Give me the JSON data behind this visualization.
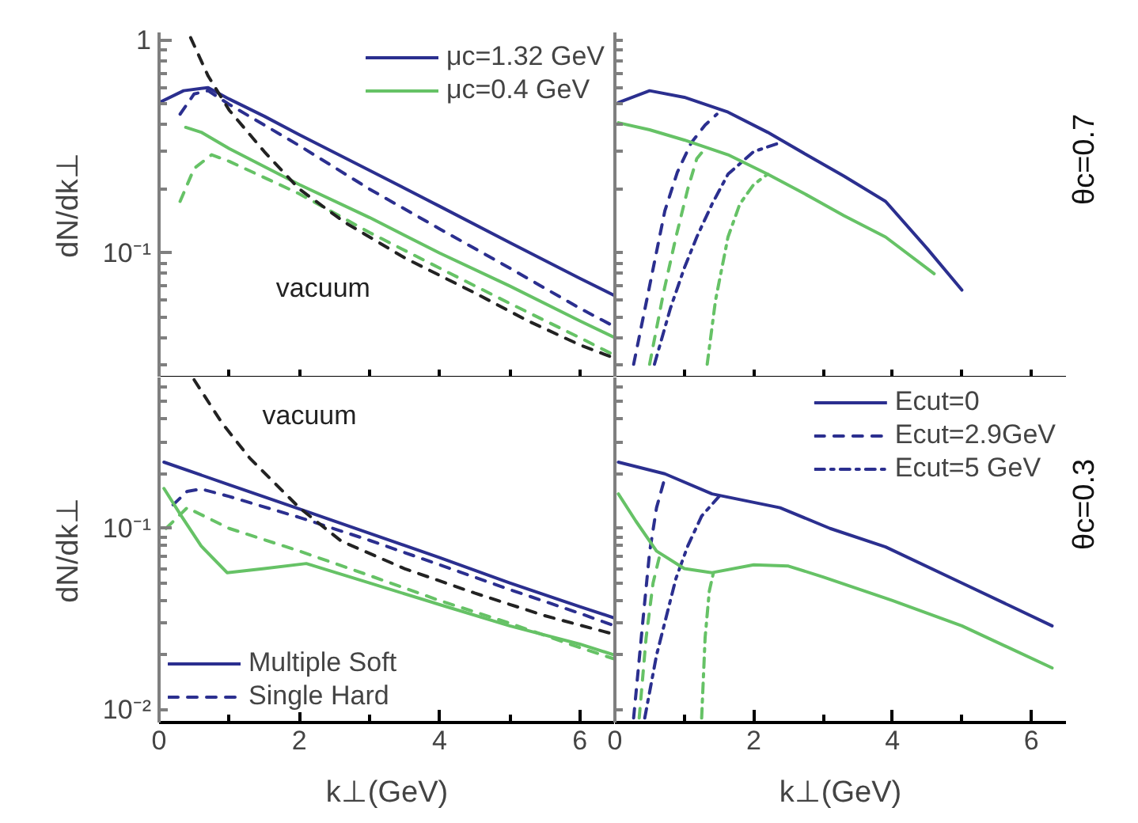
{
  "chart_data": [
    {
      "type": "line",
      "ylabel": "dN/dk⊥",
      "xlim": [
        0,
        6.5
      ],
      "ylim": [
        0.026,
        1.09
      ],
      "log": true,
      "tick_labels": "y",
      "legend": "top right",
      "xticks": [
        {
          "value": 0,
          "label": null
        },
        {
          "value": 1,
          "label": null
        },
        {
          "value": 2,
          "label": null
        },
        {
          "value": 3,
          "label": null
        },
        {
          "value": 4,
          "label": null
        },
        {
          "value": 5,
          "label": null
        },
        {
          "value": 6,
          "label": null
        }
      ],
      "yticks": [
        1,
        {
          "value": 0.1,
          "label": "10⁻¹"
        },
        {
          "value": 0.03,
          "label": null
        },
        {
          "value": 0.04,
          "label": null
        },
        {
          "value": 0.05,
          "label": null
        },
        {
          "value": 0.06,
          "label": null
        },
        {
          "value": 0.07,
          "label": null
        },
        {
          "value": 0.08,
          "label": null
        },
        {
          "value": 0.09,
          "label": null
        },
        {
          "value": 0.2,
          "label": null
        },
        {
          "value": 0.3,
          "label": null
        },
        {
          "value": 0.4,
          "label": null
        },
        {
          "value": 0.5,
          "label": null
        },
        {
          "value": 0.6,
          "label": null
        },
        {
          "value": 0.7,
          "label": null
        },
        {
          "value": 0.8,
          "label": null
        },
        {
          "value": 0.9,
          "label": null
        }
      ],
      "series": [
        {
          "name": "μc=1.32 GeV",
          "color": "#2b2f8f",
          "line_style": "solid",
          "x": [
            0,
            0.35,
            0.7,
            1,
            1.5,
            2,
            3,
            4,
            5,
            6,
            6.5
          ],
          "values": [
            0.51,
            0.58,
            0.6,
            0.53,
            0.44,
            0.36,
            0.245,
            0.166,
            0.112,
            0.076,
            0.063
          ]
        },
        {
          "color": "#2b2f8f",
          "line_style": "dashed",
          "x": [
            0.3,
            0.5,
            0.7,
            1,
            2,
            3,
            4,
            5,
            6,
            6.5
          ],
          "values": [
            0.45,
            0.56,
            0.58,
            0.5,
            0.32,
            0.2,
            0.13,
            0.085,
            0.055,
            0.045
          ]
        },
        {
          "name": "μc=0.4 GeV",
          "color": "#66c266",
          "line_style": "solid",
          "x": [
            0.38,
            0.6,
            1,
            2,
            3,
            4,
            5,
            6,
            6.5
          ],
          "values": [
            0.39,
            0.37,
            0.31,
            0.21,
            0.147,
            0.1,
            0.07,
            0.048,
            0.04
          ]
        },
        {
          "color": "#66c266",
          "line_style": "dashed",
          "x": [
            0.3,
            0.5,
            0.75,
            1,
            2,
            3,
            4,
            5,
            6,
            6.5
          ],
          "values": [
            0.175,
            0.25,
            0.29,
            0.27,
            0.19,
            0.125,
            0.085,
            0.058,
            0.04,
            0.033
          ]
        },
        {
          "color": "#222222",
          "line_style": "dashed",
          "x": [
            0.45,
            0.7,
            1,
            1.5,
            2,
            2.64,
            3.5,
            4.5,
            5.26,
            6,
            6.5
          ],
          "values": [
            1.03,
            0.68,
            0.47,
            0.3,
            0.2,
            0.14,
            0.095,
            0.065,
            0.048,
            0.037,
            0.032
          ]
        }
      ],
      "annotations": [
        "vacuum"
      ]
    },
    {
      "type": "line",
      "y2label": "θc=0.7",
      "xlim": [
        0,
        6.5
      ],
      "ylim": [
        0.026,
        1.09
      ],
      "log": true,
      "tick_labels": false,
      "xticks": [
        {
          "value": 0,
          "label": null
        },
        {
          "value": 1,
          "label": null
        },
        {
          "value": 2,
          "label": null
        },
        {
          "value": 3,
          "label": null
        },
        {
          "value": 4,
          "label": null
        },
        {
          "value": 5,
          "label": null
        },
        {
          "value": 6,
          "label": null
        }
      ],
      "yticks": [
        {
          "value": 1,
          "label": null
        },
        {
          "value": 0.1,
          "label": null
        },
        {
          "value": 0.03,
          "label": null
        },
        {
          "value": 0.04,
          "label": null
        },
        {
          "value": 0.05,
          "label": null
        },
        {
          "value": 0.06,
          "label": null
        },
        {
          "value": 0.07,
          "label": null
        },
        {
          "value": 0.08,
          "label": null
        },
        {
          "value": 0.09,
          "label": null
        },
        {
          "value": 0.2,
          "label": null
        },
        {
          "value": 0.3,
          "label": null
        },
        {
          "value": 0.4,
          "label": null
        },
        {
          "value": 0.5,
          "label": null
        },
        {
          "value": 0.6,
          "label": null
        },
        {
          "value": 0.7,
          "label": null
        },
        {
          "value": 0.8,
          "label": null
        },
        {
          "value": 0.9,
          "label": null
        }
      ],
      "series": [
        {
          "color": "#2b2f8f",
          "line_style": "solid",
          "x": [
            0.05,
            0.5,
            1,
            1.63,
            2.2,
            2.76,
            3.3,
            3.9,
            4.5,
            5.0
          ],
          "values": [
            0.51,
            0.58,
            0.54,
            0.46,
            0.37,
            0.29,
            0.23,
            0.175,
            0.105,
            0.067
          ]
        },
        {
          "color": "#2b2f8f",
          "line_style": "dashed",
          "x": [
            0.27,
            0.5,
            0.72,
            0.9,
            1.1,
            1.3,
            1.47
          ],
          "values": [
            0.03,
            0.07,
            0.158,
            0.24,
            0.33,
            0.4,
            0.45
          ]
        },
        {
          "color": "#2b2f8f",
          "line_style": "dashdot",
          "x": [
            0.57,
            0.8,
            1.0,
            1.18,
            1.4,
            1.63,
            2.0,
            2.38
          ],
          "values": [
            0.03,
            0.055,
            0.085,
            0.119,
            0.17,
            0.235,
            0.3,
            0.33
          ]
        },
        {
          "color": "#66c266",
          "line_style": "solid",
          "x": [
            0.05,
            0.5,
            1,
            1.63,
            2.2,
            2.76,
            3.3,
            3.9,
            4.6
          ],
          "values": [
            0.41,
            0.38,
            0.34,
            0.29,
            0.235,
            0.188,
            0.15,
            0.119,
            0.08
          ]
        },
        {
          "color": "#66c266",
          "line_style": "dashed",
          "x": [
            0.5,
            0.7,
            0.88,
            1.05,
            1.18,
            1.3
          ],
          "values": [
            0.03,
            0.065,
            0.119,
            0.2,
            0.278,
            0.31
          ]
        },
        {
          "color": "#66c266",
          "line_style": "dashdot",
          "x": [
            1.33,
            1.45,
            1.63,
            1.8,
            2.0,
            2.2
          ],
          "values": [
            0.03,
            0.06,
            0.119,
            0.17,
            0.21,
            0.235
          ]
        }
      ]
    },
    {
      "type": "line",
      "xlabel": "k⊥(GeV)",
      "ylabel": "dN/dk⊥",
      "xlim": [
        0,
        6.5
      ],
      "ylim": [
        0.0085,
        0.68
      ],
      "log": true,
      "legend": "bottom left",
      "xticks": [
        0,
        {
          "value": 1,
          "label": null
        },
        2,
        {
          "value": 3,
          "label": null
        },
        4,
        {
          "value": 5,
          "label": null
        },
        6
      ],
      "yticks": [
        {
          "value": 0.1,
          "label": "10⁻¹"
        },
        {
          "value": 0.01,
          "label": "10⁻²"
        },
        {
          "value": 0.02,
          "label": null
        },
        {
          "value": 0.03,
          "label": null
        },
        {
          "value": 0.04,
          "label": null
        },
        {
          "value": 0.05,
          "label": null
        },
        {
          "value": 0.06,
          "label": null
        },
        {
          "value": 0.07,
          "label": null
        },
        {
          "value": 0.08,
          "label": null
        },
        {
          "value": 0.09,
          "label": null
        },
        {
          "value": 0.2,
          "label": null
        },
        {
          "value": 0.3,
          "label": null
        },
        {
          "value": 0.4,
          "label": null
        },
        {
          "value": 0.5,
          "label": null
        },
        {
          "value": 0.6,
          "label": null
        }
      ],
      "series": [
        {
          "name": "Multiple Soft",
          "color": "#2b2f8f",
          "line_style": "solid",
          "x": [
            0.07,
            1,
            2,
            3,
            4,
            5,
            6,
            6.5
          ],
          "values": [
            0.232,
            0.174,
            0.128,
            0.094,
            0.069,
            0.05,
            0.037,
            0.032
          ]
        },
        {
          "name": "Single Hard",
          "color": "#2b2f8f",
          "line_style": "dashed",
          "x": [
            0.2,
            0.4,
            0.6,
            1,
            2,
            3,
            4,
            5,
            6,
            6.5
          ],
          "values": [
            0.135,
            0.16,
            0.165,
            0.15,
            0.115,
            0.086,
            0.063,
            0.046,
            0.034,
            0.029
          ]
        },
        {
          "color": "#66c266",
          "line_style": "solid",
          "x": [
            0.07,
            0.3,
            0.6,
            0.97,
            1.5,
            2.1,
            3,
            4,
            5,
            6,
            6.5
          ],
          "values": [
            0.166,
            0.12,
            0.08,
            0.057,
            0.06,
            0.064,
            0.05,
            0.038,
            0.029,
            0.023,
            0.02
          ]
        },
        {
          "color": "#66c266",
          "line_style": "dashed",
          "x": [
            0.1,
            0.4,
            1,
            2,
            3,
            4,
            5,
            6,
            6.5
          ],
          "values": [
            0.1,
            0.13,
            0.1,
            0.075,
            0.055,
            0.04,
            0.03,
            0.022,
            0.019
          ]
        },
        {
          "color": "#222222",
          "line_style": "dashed",
          "x": [
            0.5,
            0.9,
            1.29,
            2,
            2.6,
            3.5,
            4.5,
            5.5,
            6.5
          ],
          "values": [
            0.66,
            0.38,
            0.245,
            0.13,
            0.085,
            0.06,
            0.044,
            0.033,
            0.026
          ]
        }
      ],
      "annotations": [
        "vacuum"
      ]
    },
    {
      "type": "line",
      "xlabel": "k⊥(GeV)",
      "y2label": "θc=0.3",
      "xlim": [
        0,
        6.5
      ],
      "ylim": [
        0.0085,
        0.68
      ],
      "log": true,
      "tick_labels": "x",
      "legend": "top right",
      "xticks": [
        0,
        {
          "value": 1,
          "label": null
        },
        2,
        {
          "value": 3,
          "label": null
        },
        4,
        {
          "value": 5,
          "label": null
        },
        6
      ],
      "yticks": [
        {
          "value": 0.1,
          "label": null
        },
        {
          "value": 0.01,
          "label": null
        },
        {
          "value": 0.02,
          "label": null
        },
        {
          "value": 0.03,
          "label": null
        },
        {
          "value": 0.04,
          "label": null
        },
        {
          "value": 0.05,
          "label": null
        },
        {
          "value": 0.06,
          "label": null
        },
        {
          "value": 0.07,
          "label": null
        },
        {
          "value": 0.08,
          "label": null
        },
        {
          "value": 0.09,
          "label": null
        },
        {
          "value": 0.2,
          "label": null
        },
        {
          "value": 0.3,
          "label": null
        },
        {
          "value": 0.4,
          "label": null
        },
        {
          "value": 0.5,
          "label": null
        },
        {
          "value": 0.6,
          "label": null
        }
      ],
      "series": [
        {
          "name": "Ecut=0",
          "color": "#2b2f8f",
          "line_style": "solid",
          "x": [
            0.05,
            0.72,
            1.4,
            2.38,
            3.1,
            3.9,
            5,
            6.3
          ],
          "values": [
            0.232,
            0.2,
            0.155,
            0.13,
            0.1,
            0.079,
            0.05,
            0.029
          ]
        },
        {
          "name": "Ecut=2.9GeV",
          "color": "#2b2f8f",
          "line_style": "dashed",
          "x": [
            0.27,
            0.4,
            0.5,
            0.6,
            0.72
          ],
          "values": [
            0.009,
            0.03,
            0.074,
            0.13,
            0.19
          ]
        },
        {
          "name": "Ecut=5 GeV",
          "color": "#2b2f8f",
          "line_style": "dashdot",
          "x": [
            0.43,
            0.6,
            0.88,
            1.05,
            1.25,
            1.5
          ],
          "values": [
            0.009,
            0.02,
            0.053,
            0.08,
            0.117,
            0.15
          ]
        },
        {
          "color": "#66c266",
          "line_style": "solid",
          "x": [
            0.05,
            0.3,
            0.6,
            1,
            1.4,
            2,
            2.5,
            3,
            4,
            5,
            6.3
          ],
          "values": [
            0.155,
            0.11,
            0.075,
            0.06,
            0.057,
            0.063,
            0.062,
            0.054,
            0.04,
            0.029,
            0.017
          ]
        },
        {
          "color": "#66c266",
          "line_style": "dashed",
          "x": [
            0.35,
            0.45,
            0.55,
            0.65
          ],
          "values": [
            0.009,
            0.025,
            0.05,
            0.072
          ]
        },
        {
          "color": "#66c266",
          "line_style": "dashdot",
          "x": [
            1.25,
            1.3,
            1.36,
            1.42
          ],
          "values": [
            0.009,
            0.025,
            0.045,
            0.057
          ]
        }
      ]
    }
  ]
}
